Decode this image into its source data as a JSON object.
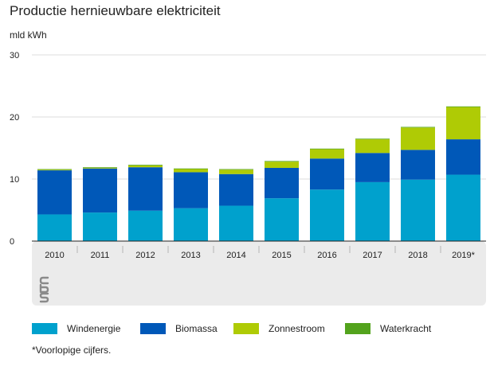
{
  "header": {
    "title": "Productie hernieuwbare elektriciteit",
    "unit": "mld kWh"
  },
  "chart_data": {
    "type": "bar",
    "stacked": true,
    "title": "Productie hernieuwbare elektriciteit",
    "ylabel": "mld kWh",
    "xlabel": "",
    "ylim": [
      0,
      30
    ],
    "yticks": [
      0,
      10,
      20,
      30
    ],
    "grid": true,
    "legend_position": "bottom",
    "categories": [
      "2010",
      "2011",
      "2012",
      "2013",
      "2014",
      "2015",
      "2016",
      "2017",
      "2018",
      "2019*"
    ],
    "series": [
      {
        "name": "Windenergie",
        "color": "#00a1cd",
        "values": [
          4.3,
          4.6,
          4.9,
          5.3,
          5.7,
          6.9,
          8.3,
          9.5,
          9.9,
          10.7
        ]
      },
      {
        "name": "Biomassa",
        "color": "#0058b8",
        "values": [
          7.1,
          7.1,
          7.0,
          5.8,
          5.1,
          4.9,
          5.0,
          4.7,
          4.8,
          5.7
        ]
      },
      {
        "name": "Zonnestroom",
        "color": "#afcb05",
        "values": [
          0.1,
          0.1,
          0.3,
          0.5,
          0.7,
          1.0,
          1.5,
          2.2,
          3.6,
          5.2
        ]
      },
      {
        "name": "Waterkracht",
        "color": "#53a31d",
        "values": [
          0.1,
          0.1,
          0.1,
          0.1,
          0.1,
          0.1,
          0.1,
          0.1,
          0.1,
          0.1
        ]
      }
    ]
  },
  "footnote": "*Voorlopige cijfers.",
  "logo": {
    "icon": "cbs-logo-icon"
  }
}
